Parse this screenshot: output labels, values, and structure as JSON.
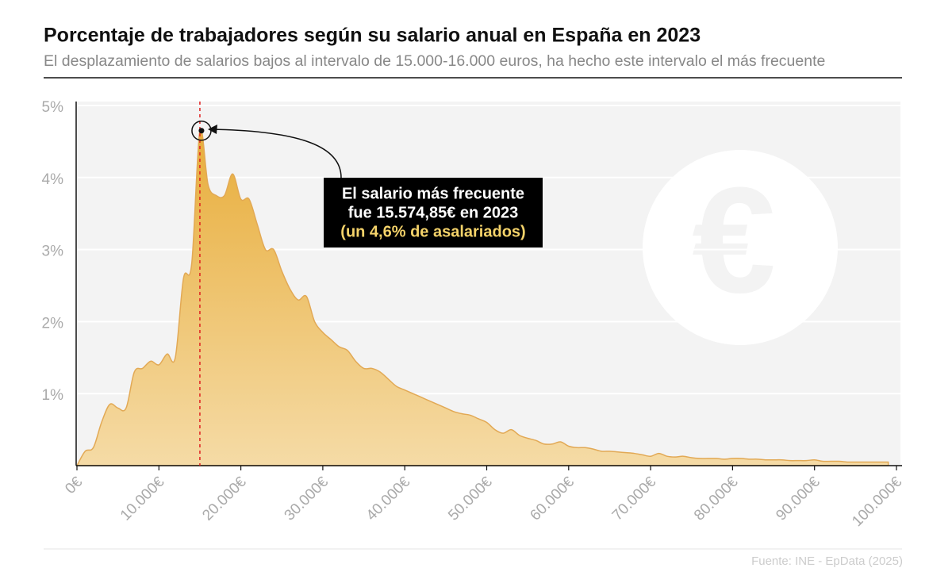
{
  "chart_data": {
    "type": "area",
    "title": "Porcentaje de trabajadores según su salario anual en España en 2023",
    "subtitle": "El desplazamiento de salarios bajos al intervalo de 15.000-16.000 euros, ha hecho este intervalo el más frecuente",
    "source": "Fuente: INE - EpData (2025)",
    "annotation": [
      "El salario más frecuente",
      "fue 15.574,85€ en 2023",
      "(un 4,6% de asalariados)"
    ],
    "color": "#e8b043",
    "x": [
      0,
      1,
      2,
      3,
      4,
      5,
      6,
      7,
      8,
      9,
      10,
      11,
      12,
      13,
      14,
      15,
      16,
      17,
      18,
      19,
      20,
      21,
      22,
      23,
      24,
      25,
      26,
      27,
      28,
      29,
      30,
      31,
      32,
      33,
      34,
      35,
      36,
      37,
      38,
      39,
      40,
      41,
      42,
      43,
      44,
      45,
      46,
      47,
      48,
      49,
      50,
      51,
      52,
      53,
      54,
      55,
      56,
      57,
      58,
      59,
      60,
      61,
      62,
      63,
      64,
      65,
      66,
      67,
      68,
      69,
      70,
      71,
      72,
      73,
      74,
      75,
      76,
      77,
      78,
      79,
      80,
      81,
      82,
      83,
      84,
      85,
      86,
      87,
      88,
      89,
      90,
      91,
      92,
      93,
      94,
      95,
      96,
      97,
      98,
      99
    ],
    "values": [
      0,
      0.2,
      0.25,
      0.6,
      0.85,
      0.8,
      0.8,
      1.3,
      1.35,
      1.45,
      1.4,
      1.55,
      1.5,
      2.6,
      2.8,
      4.65,
      3.9,
      3.75,
      3.75,
      4.05,
      3.7,
      3.7,
      3.35,
      3.0,
      3.0,
      2.7,
      2.45,
      2.3,
      2.35,
      2.0,
      1.85,
      1.75,
      1.65,
      1.6,
      1.45,
      1.35,
      1.35,
      1.3,
      1.2,
      1.1,
      1.05,
      1.0,
      0.95,
      0.9,
      0.85,
      0.8,
      0.75,
      0.72,
      0.7,
      0.65,
      0.6,
      0.5,
      0.45,
      0.5,
      0.42,
      0.38,
      0.35,
      0.3,
      0.3,
      0.33,
      0.27,
      0.25,
      0.25,
      0.23,
      0.2,
      0.2,
      0.19,
      0.18,
      0.17,
      0.15,
      0.13,
      0.17,
      0.13,
      0.12,
      0.13,
      0.11,
      0.1,
      0.1,
      0.1,
      0.09,
      0.1,
      0.1,
      0.09,
      0.09,
      0.08,
      0.08,
      0.08,
      0.07,
      0.07,
      0.07,
      0.08,
      0.06,
      0.06,
      0.06,
      0.05,
      0.05,
      0.05,
      0.05,
      0.05,
      0.05
    ],
    "peak_index": 15,
    "xlim": [
      0,
      100
    ],
    "xticks": [
      {
        "value": 0,
        "label": "0€"
      },
      {
        "value": 10,
        "label": "10.000€"
      },
      {
        "value": 20,
        "label": "20.000€"
      },
      {
        "value": 30,
        "label": "30.000€"
      },
      {
        "value": 40,
        "label": "40.000€"
      },
      {
        "value": 50,
        "label": "50.000€"
      },
      {
        "value": 60,
        "label": "60.000€"
      },
      {
        "value": 70,
        "label": "70.000€"
      },
      {
        "value": 80,
        "label": "80.000€"
      },
      {
        "value": 90,
        "label": "90.000€"
      },
      {
        "value": 100,
        "label": "100.000€"
      }
    ],
    "ylim": [
      0,
      5
    ],
    "yticks": [
      {
        "value": 1,
        "label": "1%"
      },
      {
        "value": 2,
        "label": "2%"
      },
      {
        "value": 3,
        "label": "3%"
      },
      {
        "value": 4,
        "label": "4%"
      },
      {
        "value": 5,
        "label": "5%"
      }
    ],
    "grid": true
  }
}
